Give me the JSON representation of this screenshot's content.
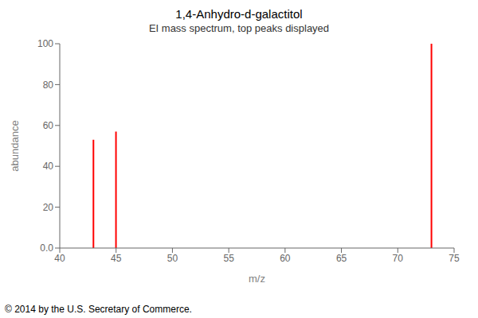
{
  "chart_data": {
    "type": "bar",
    "title": "1,4-Anhydro-d-galactitol",
    "subtitle": "EI mass spectrum, top peaks displayed",
    "x_label": "m/z",
    "y_label": "abundance",
    "x": [
      43,
      45,
      73
    ],
    "values": [
      53,
      57,
      100
    ],
    "color": "#ff0000",
    "xlim": [
      40,
      75
    ],
    "ylim": [
      0.0,
      100
    ],
    "xticks": [
      40,
      45,
      50,
      55,
      60,
      65,
      70,
      75
    ],
    "yticks": [
      {
        "value": 0,
        "label": "0.0"
      },
      20,
      40,
      60,
      80,
      100
    ],
    "grid": false,
    "annotation": "© 2014 by the U.S. Secretary of Commerce."
  }
}
